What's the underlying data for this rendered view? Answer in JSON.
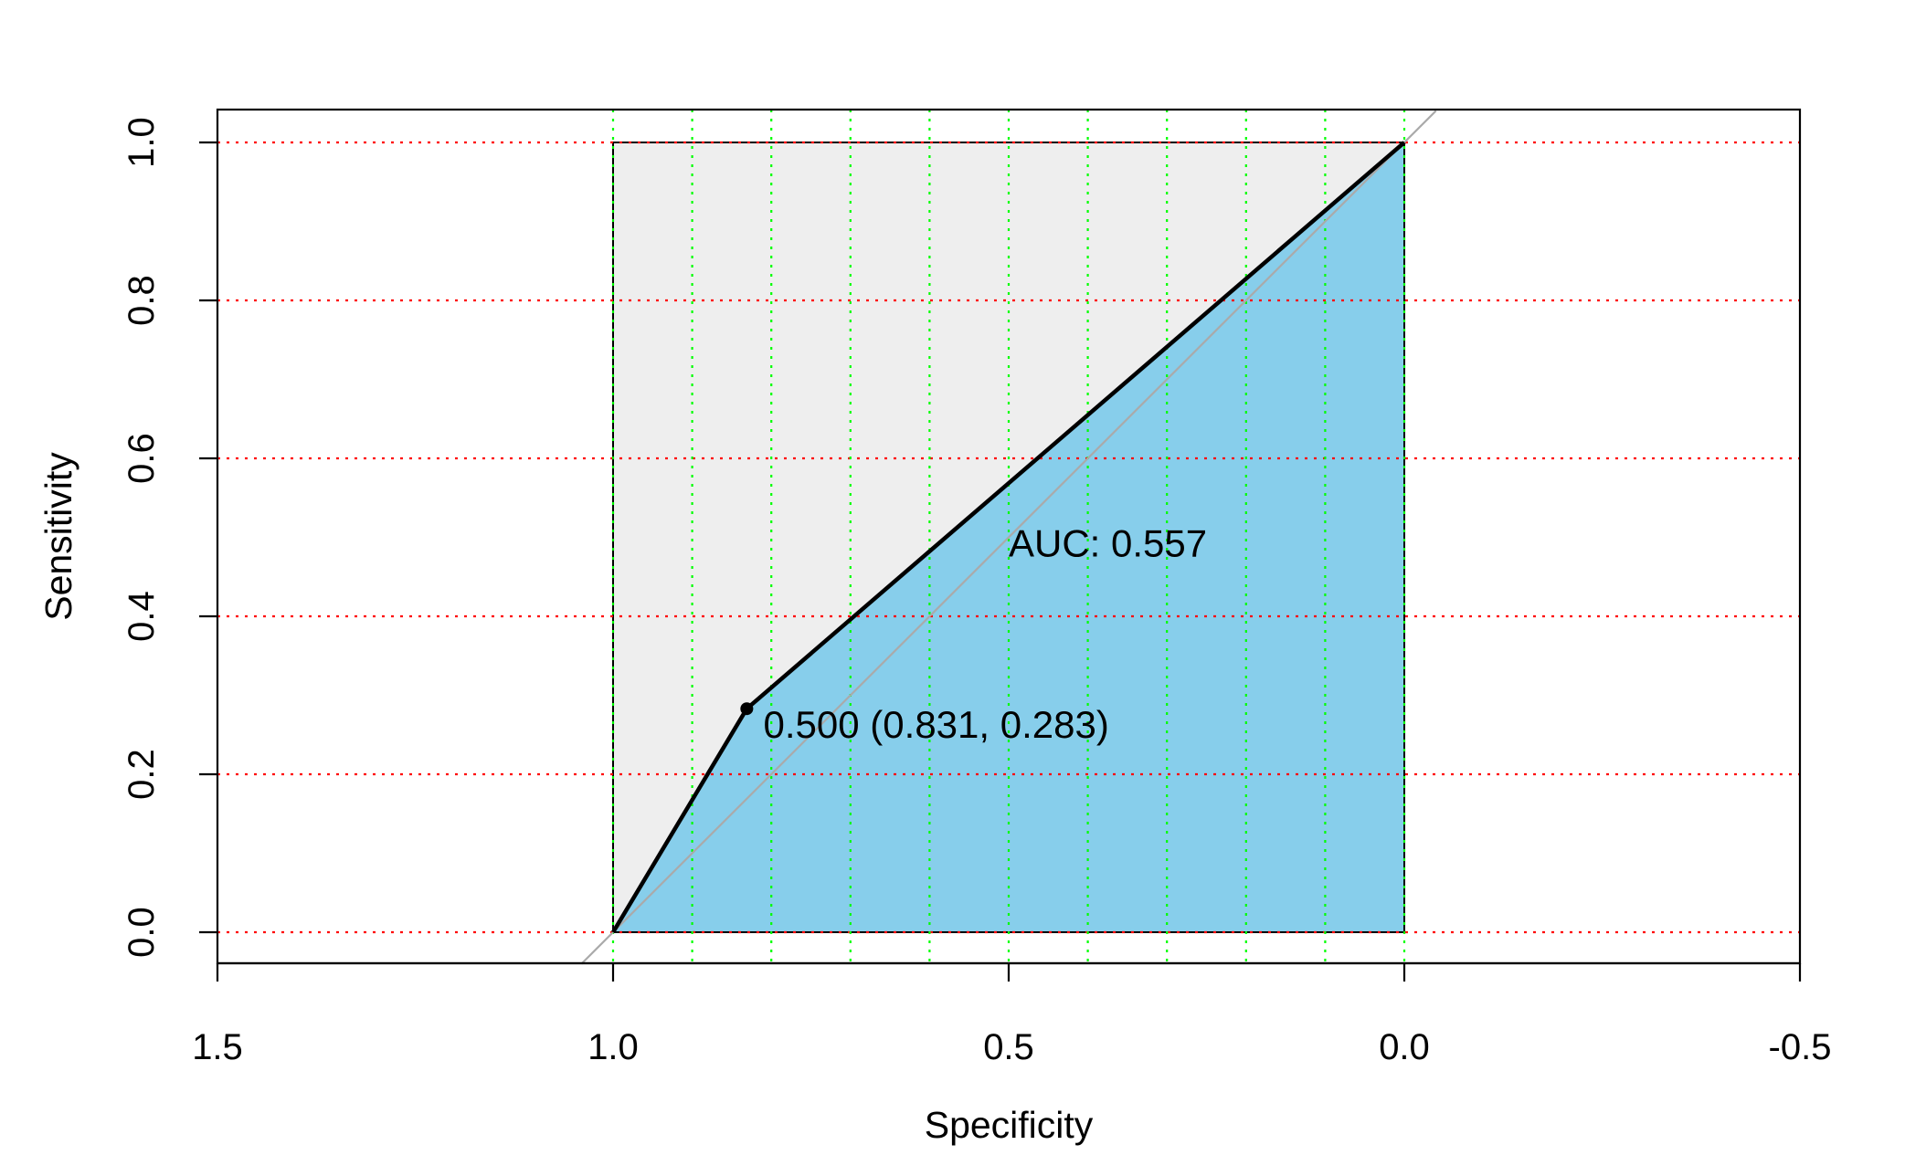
{
  "chart_data": {
    "type": "line",
    "subtype": "roc-curve",
    "xlabel": "Specificity",
    "ylabel": "Sensitivity",
    "xlim": [
      1.5,
      -0.5
    ],
    "ylim": [
      0.0,
      1.0
    ],
    "x_axis_reversed": true,
    "x_ticks": [
      1.5,
      1.0,
      0.5,
      0.0,
      -0.5
    ],
    "x_tick_labels": [
      "1.5",
      "1.0",
      "0.5",
      "0.0",
      "-0.5"
    ],
    "y_ticks": [
      0.0,
      0.2,
      0.4,
      0.6,
      0.8,
      1.0
    ],
    "y_tick_labels": [
      "0.0",
      "0.2",
      "0.4",
      "0.6",
      "0.8",
      "1.0"
    ],
    "series": [
      {
        "specificity": [
          1.0,
          0.831,
          0.0
        ],
        "sensitivity": [
          0.0,
          0.283,
          1.0
        ]
      }
    ],
    "auc": 0.557,
    "auc_label": "AUC: 0.557",
    "auc_label_position": {
      "specificity": 0.5,
      "sensitivity": 0.476
    },
    "threshold_point": {
      "specificity": 0.831,
      "sensitivity": 0.283,
      "threshold": 0.5
    },
    "threshold_label": "0.500 (0.831, 0.283)",
    "threshold_label_position": {
      "specificity": 0.81,
      "sensitivity": 0.246
    },
    "grid": {
      "vertical_green_dotted_at": [
        1.0,
        0.9,
        0.8,
        0.7,
        0.6,
        0.5,
        0.4,
        0.3,
        0.2,
        0.1,
        0.0
      ],
      "horizontal_red_dotted_at": [
        0.0,
        0.2,
        0.4,
        0.6,
        0.8,
        1.0
      ]
    },
    "reference_line": "diagonal",
    "colors": {
      "auc_fill": "#87CEEB",
      "roc_region_fill": "#EEEEEE",
      "curve": "#000000",
      "diagonal": "#AAAAAA",
      "grid_vertical": "#00FF00",
      "grid_horizontal": "#FF0000"
    }
  }
}
